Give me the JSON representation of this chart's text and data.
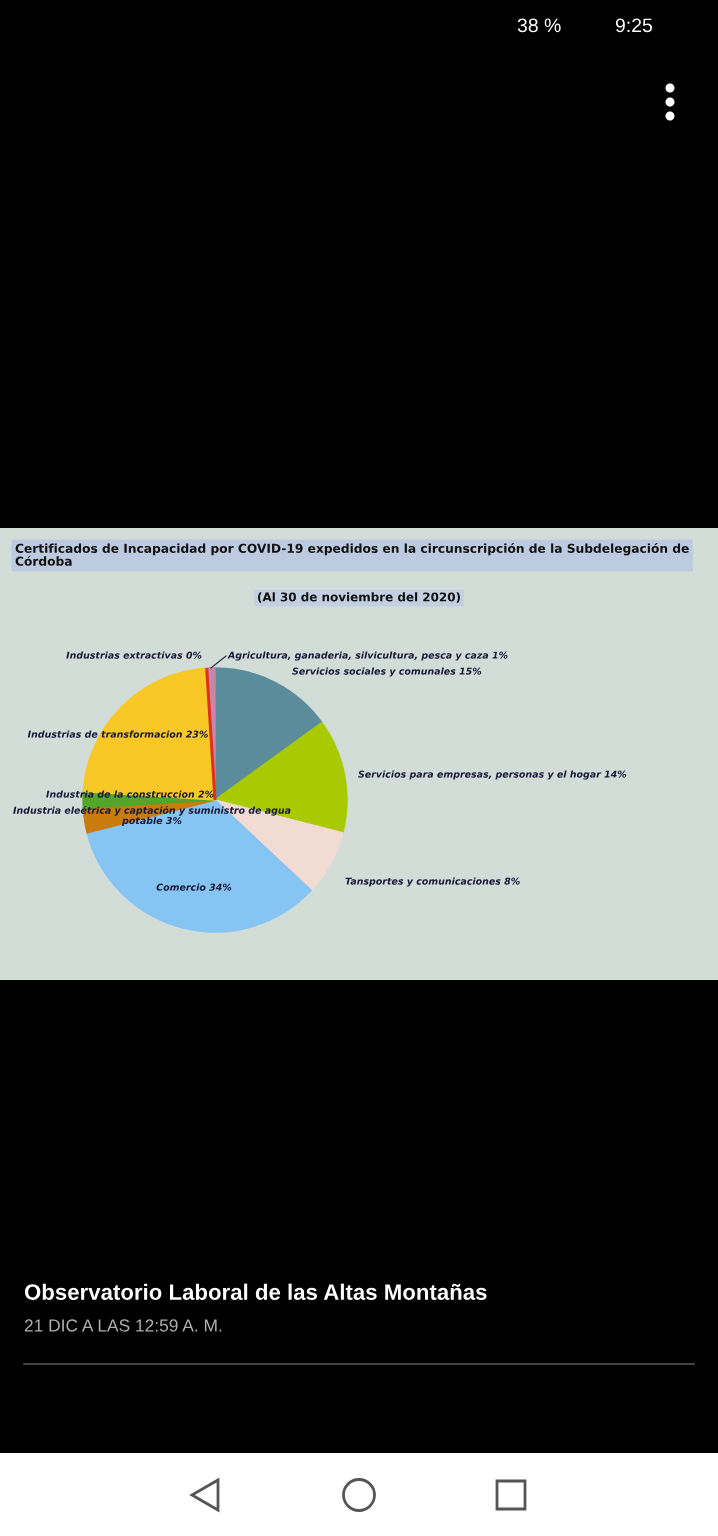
{
  "chart_data": {
    "type": "pie",
    "title": "Certificados de Incapacidad por COVID-19 expedidos en la circunscripción de la Subdelegación de Córdoba",
    "subtitle": "(Al 30 de noviembre del 2020)",
    "categories": [
      "Servicios sociales y comunales",
      "Servicios para empresas, personas y el hogar",
      "Tansportes y comunicaciones",
      "Comercio",
      "Industria eleétrica y captación y suministro de agua potable",
      "Industria de la construccion",
      "Industrias de transformacion",
      "Industrias extractivas",
      "Agricultura, ganaderia, silvicultura, pesca y caza"
    ],
    "values": [
      15,
      14,
      8,
      34,
      3,
      2,
      23,
      0,
      1
    ],
    "value_labels": [
      "15%",
      "14%",
      "8%",
      "34%",
      "3%",
      "2%",
      "23%",
      "0%",
      "1%"
    ],
    "colors": [
      "#5b8c9c",
      "#a9c900",
      "#f1dbd3",
      "#85c4f3",
      "#c97b0b",
      "#53a52b",
      "#f9c826",
      "#de3120",
      "#c687a9"
    ],
    "annotations": [
      "9:25",
      "38 %",
      "Observatorio Laboral de las Altas Montañas",
      "21 DIC A LAS 12:59 A. M."
    ]
  }
}
